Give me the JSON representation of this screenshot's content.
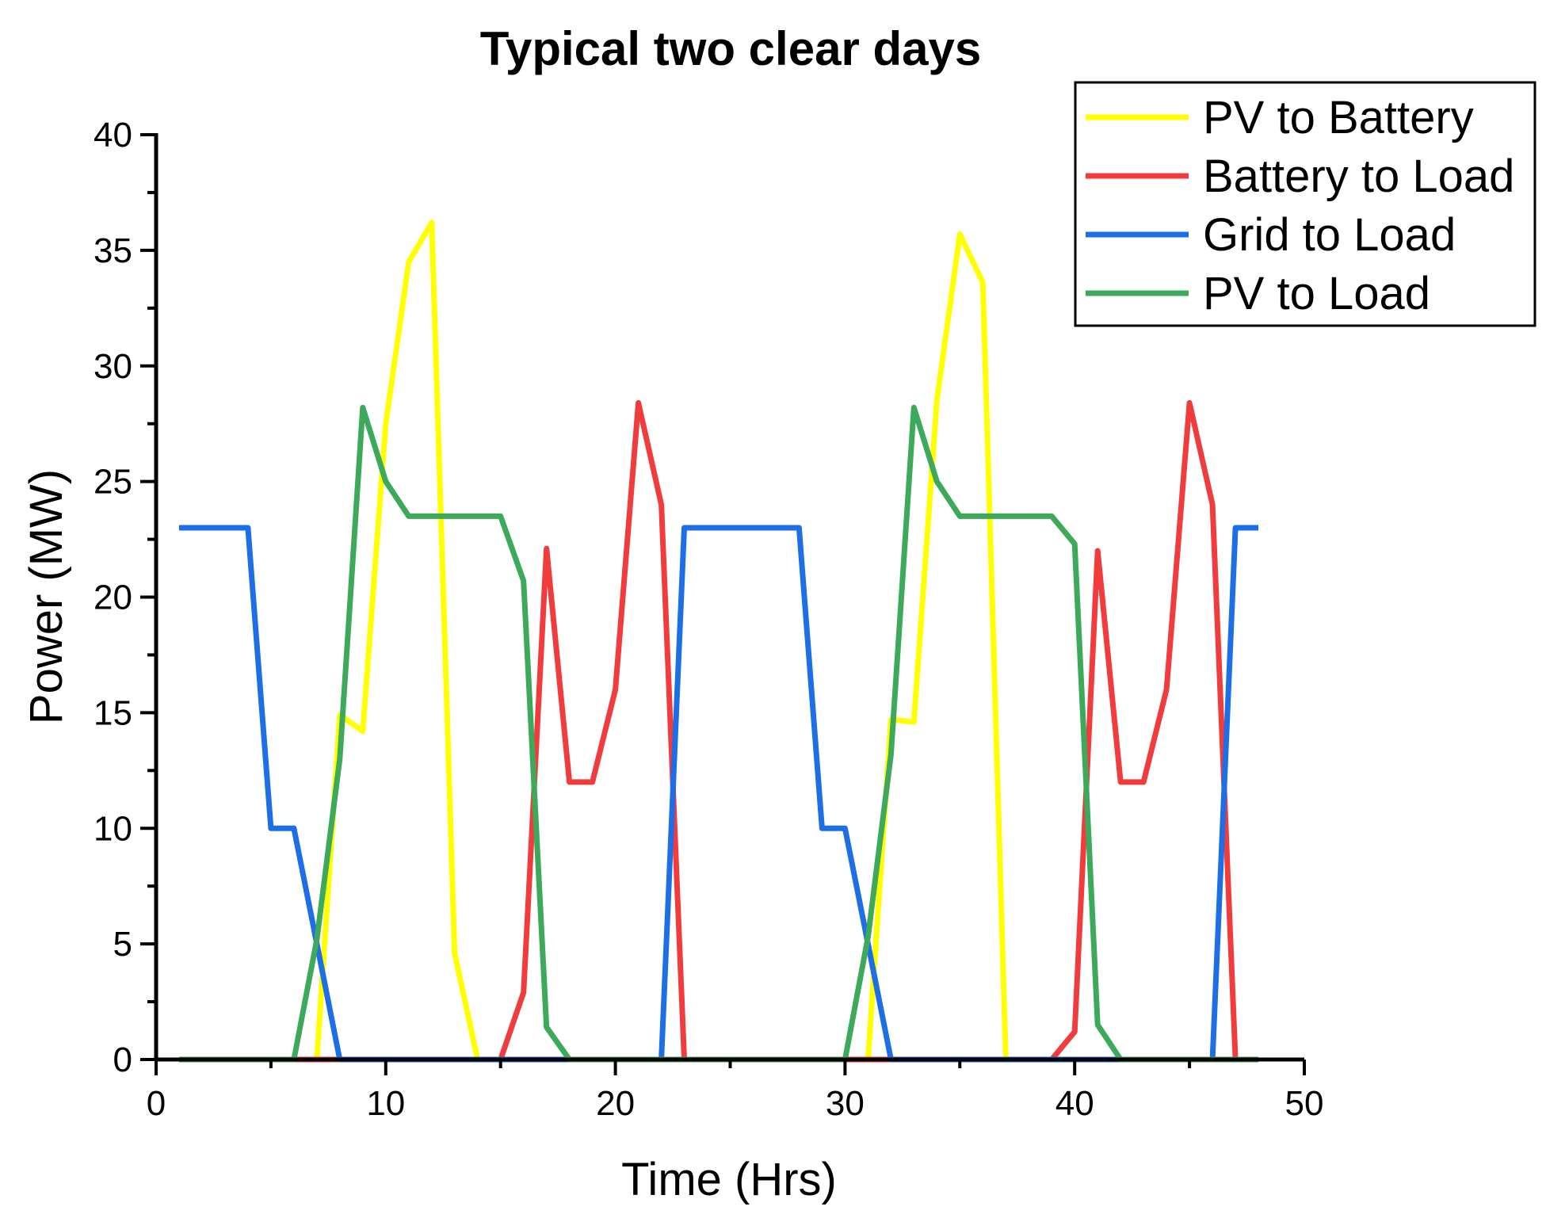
{
  "chart_data": {
    "type": "line",
    "title": "Typical two clear days",
    "xlabel": "Time (Hrs)",
    "ylabel": "Power (MW)",
    "xlim": [
      0,
      50
    ],
    "ylim": [
      0,
      40
    ],
    "xticks": [
      0,
      10,
      20,
      30,
      40,
      50
    ],
    "yticks": [
      0,
      5,
      10,
      15,
      20,
      25,
      30,
      35,
      40
    ],
    "x_tick_labels": [
      "0",
      "10",
      "20",
      "30",
      "40",
      "50"
    ],
    "y_tick_labels": [
      "0",
      "5",
      "10",
      "15",
      "20",
      "25",
      "30",
      "35",
      "40"
    ],
    "grid": false,
    "legend_position": "top-right",
    "x": [
      1,
      2,
      3,
      4,
      5,
      6,
      7,
      8,
      9,
      10,
      11,
      12,
      13,
      14,
      15,
      16,
      17,
      18,
      19,
      20,
      21,
      22,
      23,
      24,
      25,
      26,
      27,
      28,
      29,
      30,
      31,
      32,
      33,
      34,
      35,
      36,
      37,
      38,
      39,
      40,
      41,
      42,
      43,
      44,
      45,
      46,
      47,
      48
    ],
    "series": [
      {
        "name": "PV to Battery",
        "color": "#ffff00",
        "values": [
          0,
          0,
          0,
          0,
          0,
          0,
          0,
          14.9,
          14.2,
          27.5,
          34.5,
          36.2,
          4.6,
          0,
          0,
          0,
          0,
          0,
          0,
          0,
          0,
          0,
          0,
          0,
          0,
          0,
          0,
          0,
          0,
          0,
          0,
          14.7,
          14.6,
          28.5,
          35.7,
          33.6,
          0,
          0,
          0,
          0,
          0,
          0,
          0,
          0,
          0,
          0,
          0,
          0
        ]
      },
      {
        "name": "Battery to Load",
        "color": "#f03c3c",
        "values": [
          0,
          0,
          0,
          0,
          0,
          0,
          0,
          0,
          0,
          0,
          0,
          0,
          0,
          0,
          0,
          2.9,
          22.1,
          12.0,
          12.0,
          16.0,
          28.4,
          24.0,
          0,
          0,
          0,
          0,
          0,
          0,
          0,
          0,
          0,
          0,
          0,
          0,
          0,
          0,
          0,
          0,
          0,
          1.2,
          22.0,
          12.0,
          12.0,
          16.0,
          28.4,
          24.0,
          0,
          0
        ]
      },
      {
        "name": "Grid to Load",
        "color": "#1e6ee6",
        "values": [
          23,
          23,
          23,
          23,
          10,
          10,
          5,
          0,
          0,
          0,
          0,
          0,
          0,
          0,
          0,
          0,
          0,
          0,
          0,
          0,
          0,
          0,
          23,
          23,
          23,
          23,
          23,
          23,
          10,
          10,
          5,
          0,
          0,
          0,
          0,
          0,
          0,
          0,
          0,
          0,
          0,
          0,
          0,
          0,
          0,
          0,
          23,
          23
        ]
      },
      {
        "name": "PV to Load",
        "color": "#3caa5a",
        "values": [
          0,
          0,
          0,
          0,
          0,
          0,
          5.2,
          13,
          28.2,
          25,
          23.5,
          23.5,
          23.5,
          23.5,
          23.5,
          20.7,
          1.4,
          0,
          0,
          0,
          0,
          0,
          0,
          0,
          0,
          0,
          0,
          0,
          0,
          0,
          5.3,
          13.2,
          28.2,
          25,
          23.5,
          23.5,
          23.5,
          23.5,
          23.5,
          22.3,
          1.5,
          0,
          0,
          0,
          0,
          0,
          0,
          0
        ]
      }
    ]
  }
}
